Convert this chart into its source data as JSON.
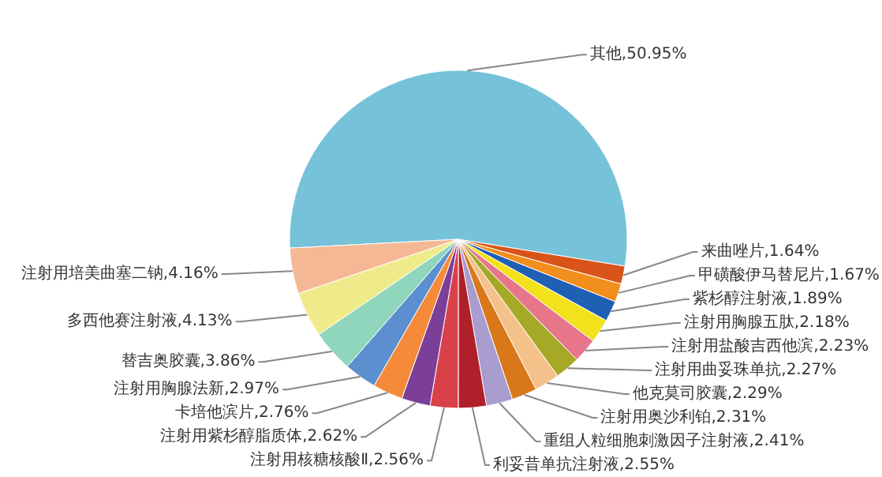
{
  "chart_data": {
    "type": "pie",
    "categories": [
      "其他",
      "来曲唑片",
      "甲磺酸伊马替尼片",
      "紫杉醇注射液",
      "注射用胸腺五肽",
      "注射用盐酸吉西他滨",
      "注射用曲妥珠单抗",
      "他克莫司胶囊",
      "注射用奥沙利铂",
      "重组人粒细胞刺激因子注射液",
      "利妥昔单抗注射液",
      "注射用核糖核酸Ⅱ",
      "注射用紫杉醇脂质体",
      "卡培他滨片",
      "注射用胸腺法新",
      "替吉奥胶囊",
      "多西他赛注射液",
      "注射用培美曲塞二钠"
    ],
    "values": [
      50.95,
      1.64,
      1.67,
      1.89,
      2.18,
      2.23,
      2.27,
      2.29,
      2.31,
      2.41,
      2.55,
      2.56,
      2.62,
      2.76,
      2.97,
      3.86,
      4.13,
      4.16
    ],
    "value_labels": [
      "50.95%",
      "1.64%",
      "1.67%",
      "1.89%",
      "2.18%",
      "2.23%",
      "2.27%",
      "2.29%",
      "2.31%",
      "2.41%",
      "2.55%",
      "2.56%",
      "2.62%",
      "2.76%",
      "2.97%",
      "3.86%",
      "4.13%",
      "4.16%"
    ],
    "colors": [
      "#76c2d9",
      "#d9541a",
      "#f28e1c",
      "#1f5fb4",
      "#f2e21c",
      "#e8768a",
      "#a6a827",
      "#f5c18a",
      "#d9781a",
      "#a99ccf",
      "#b0202a",
      "#d9414a",
      "#7b3f98",
      "#f58a3a",
      "#5b8fcf",
      "#8fd6bd",
      "#f0eb8a",
      "#f5b894"
    ]
  }
}
